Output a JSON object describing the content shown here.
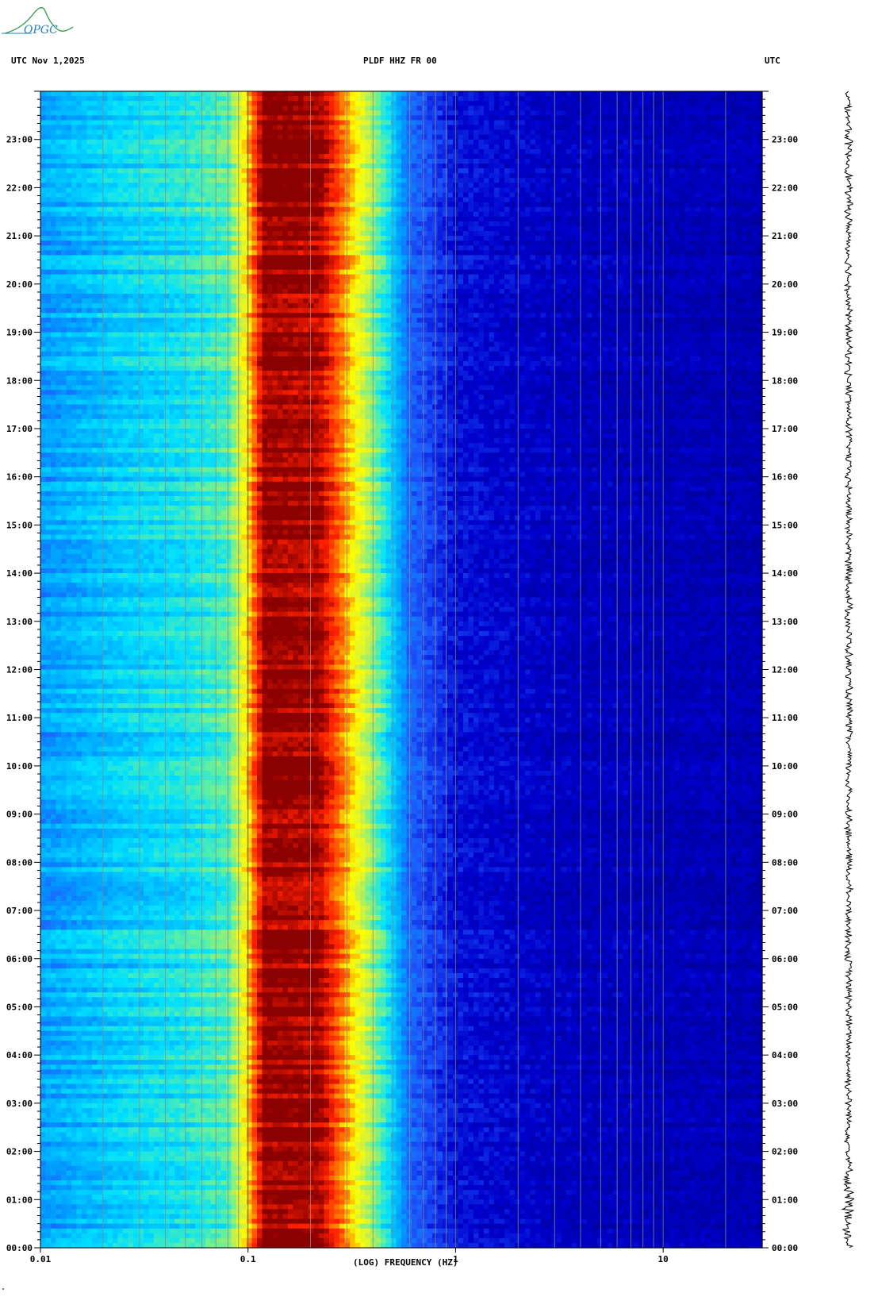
{
  "header": {
    "left": "UTC  Nov 1,2025",
    "center": "PLDF HHZ FR 00",
    "right": "UTC"
  },
  "logo": {
    "text": "OPGC",
    "color": "#2a9a4a"
  },
  "corner_mark": "\"",
  "chart_data": {
    "type": "heatmap",
    "title": "PLDF HHZ FR 00",
    "date": "Nov 1,2025",
    "xlabel": "(LOG) FREQUENCY (HZ)",
    "x_scale": "log",
    "xlim": [
      0.01,
      30
    ],
    "x_ticks": [
      {
        "value": 0.01,
        "label": "0.01"
      },
      {
        "value": 0.1,
        "label": "0.1"
      },
      {
        "value": 1,
        "label": "1"
      },
      {
        "value": 10,
        "label": "10"
      }
    ],
    "ylabel": "UTC",
    "ylim_hours": [
      0,
      24
    ],
    "y_ticks": [
      "00:00",
      "01:00",
      "02:00",
      "03:00",
      "04:00",
      "05:00",
      "06:00",
      "07:00",
      "08:00",
      "09:00",
      "10:00",
      "11:00",
      "12:00",
      "13:00",
      "14:00",
      "15:00",
      "16:00",
      "17:00",
      "18:00",
      "19:00",
      "20:00",
      "21:00",
      "22:00",
      "23:00"
    ],
    "colormap": [
      "#00008b",
      "#0000cd",
      "#1e5aff",
      "#00a0ff",
      "#00e0ff",
      "#60f0a0",
      "#d0f040",
      "#ffff00",
      "#ff8000",
      "#ff2000",
      "#8b0000"
    ],
    "spectral_profile": [
      {
        "f": 0.01,
        "level": 0.3
      },
      {
        "f": 0.025,
        "level": 0.38
      },
      {
        "f": 0.05,
        "level": 0.42
      },
      {
        "f": 0.08,
        "level": 0.48
      },
      {
        "f": 0.095,
        "level": 0.66
      },
      {
        "f": 0.12,
        "level": 1.0
      },
      {
        "f": 0.22,
        "level": 0.98
      },
      {
        "f": 0.28,
        "level": 0.82
      },
      {
        "f": 0.36,
        "level": 0.62
      },
      {
        "f": 0.45,
        "level": 0.45
      },
      {
        "f": 0.6,
        "level": 0.22
      },
      {
        "f": 1.0,
        "level": 0.12
      },
      {
        "f": 3.0,
        "level": 0.08
      },
      {
        "f": 30.0,
        "level": 0.06
      }
    ],
    "gridlines_at": [
      0.02,
      0.03,
      0.04,
      0.05,
      0.06,
      0.07,
      0.08,
      0.09,
      0.2,
      0.3,
      0.4,
      0.5,
      0.6,
      0.7,
      0.8,
      0.9,
      2,
      3,
      4,
      5,
      6,
      7,
      8,
      9,
      20
    ],
    "grid": true,
    "trace": "seismogram trace along right edge"
  }
}
